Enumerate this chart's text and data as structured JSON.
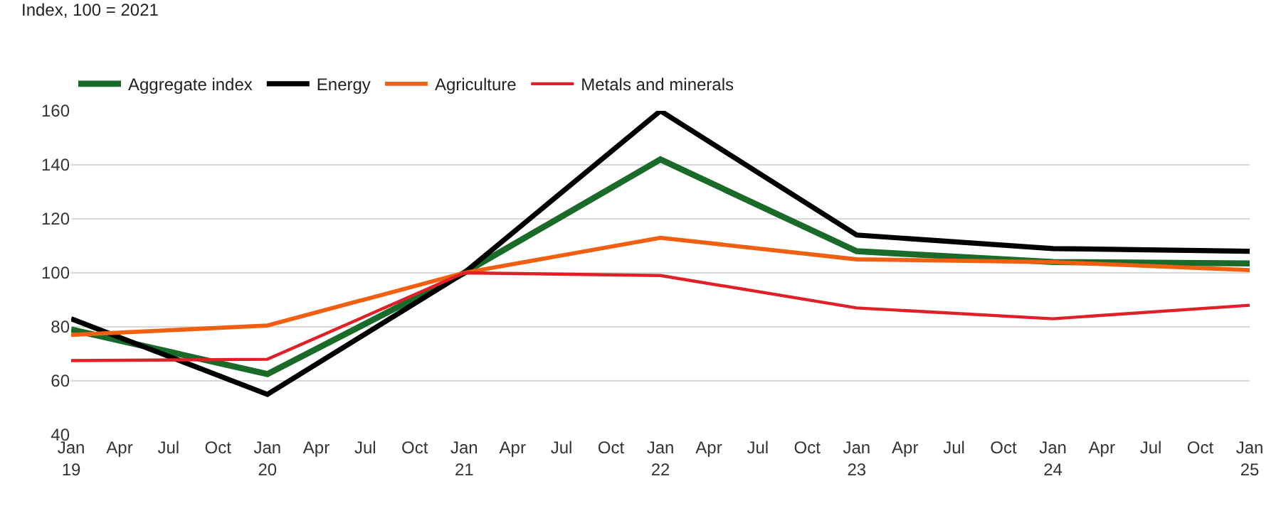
{
  "chart_data": {
    "type": "line",
    "ylabel": "Index, 100 = 2021",
    "x": [
      "2019-01",
      "2020-01",
      "2021-01",
      "2022-01",
      "2023-01",
      "2024-01",
      "2025-01"
    ],
    "series": [
      {
        "name": "Aggregate index",
        "color": "#1a6b2a",
        "values": [
          79,
          62.5,
          100,
          142,
          108,
          104,
          103.5
        ]
      },
      {
        "name": "Energy",
        "color": "#000000",
        "values": [
          83,
          55,
          100,
          160,
          114,
          109,
          108
        ]
      },
      {
        "name": "Agriculture",
        "color": "#f06010",
        "values": [
          77,
          80.5,
          100,
          113,
          105,
          104,
          101
        ]
      },
      {
        "name": "Metals and minerals",
        "color": "#e02028",
        "values": [
          67.5,
          68,
          100,
          99,
          87,
          83,
          88
        ]
      }
    ],
    "xlim": [
      "2019-01",
      "2025-01"
    ],
    "xticks": [
      {
        "value": "2019-01",
        "label": "Jan\n19"
      },
      {
        "value": "2019-04",
        "label": "Apr"
      },
      {
        "value": "2019-07",
        "label": "Jul"
      },
      {
        "value": "2019-10",
        "label": "Oct"
      },
      {
        "value": "2020-01",
        "label": "Jan\n20"
      },
      {
        "value": "2020-04",
        "label": "Apr"
      },
      {
        "value": "2020-07",
        "label": "Jul"
      },
      {
        "value": "2020-10",
        "label": "Oct"
      },
      {
        "value": "2021-01",
        "label": "Jan\n21"
      },
      {
        "value": "2021-04",
        "label": "Apr"
      },
      {
        "value": "2021-07",
        "label": "Jul"
      },
      {
        "value": "2021-10",
        "label": "Oct"
      },
      {
        "value": "2022-01",
        "label": "Jan\n22"
      },
      {
        "value": "2022-04",
        "label": "Apr"
      },
      {
        "value": "2022-07",
        "label": "Jul"
      },
      {
        "value": "2022-10",
        "label": "Oct"
      },
      {
        "value": "2023-01",
        "label": "Jan\n23"
      },
      {
        "value": "2023-04",
        "label": "Apr"
      },
      {
        "value": "2023-07",
        "label": "Jul"
      },
      {
        "value": "2023-10",
        "label": "Oct"
      },
      {
        "value": "2024-01",
        "label": "Jan\n24"
      },
      {
        "value": "2024-04",
        "label": "Apr"
      },
      {
        "value": "2024-07",
        "label": "Jul"
      },
      {
        "value": "2024-10",
        "label": "Oct"
      },
      {
        "value": "2025-01",
        "label": "Jan\n25"
      }
    ],
    "ylim": [
      40,
      160
    ],
    "yticks": [
      40,
      60,
      80,
      100,
      120,
      140,
      160
    ],
    "grid": "y",
    "legend": "top left",
    "marker": "none",
    "line_style": "solid"
  }
}
